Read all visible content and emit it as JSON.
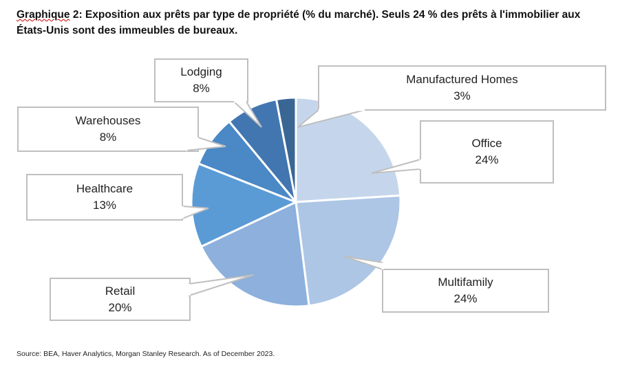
{
  "title_first": "Graphique",
  "title_rest": " 2: Exposition aux prêts par type de propriété (% du marché). Seuls 24 % des prêts à l'immobilier aux États-Unis sont des immeubles de bureaux.",
  "source": "Source: BEA, Haver Analytics, Morgan Stanley Research. As of December 2023.",
  "chart_data": {
    "type": "pie",
    "title": "Graphique 2: Exposition aux prêts par type de propriété (% du marché)",
    "start": "12 o'clock, clockwise",
    "slices": [
      {
        "label": "Office",
        "value": 24,
        "pct": "24%",
        "color": "#c5d6ec"
      },
      {
        "label": "Multifamily",
        "value": 24,
        "pct": "24%",
        "color": "#adc6e5"
      },
      {
        "label": "Retail",
        "value": 20,
        "pct": "20%",
        "color": "#8db0dc"
      },
      {
        "label": "Healthcare",
        "value": 13,
        "pct": "13%",
        "color": "#5b9bd5"
      },
      {
        "label": "Warehouses",
        "value": 8,
        "pct": "8%",
        "color": "#4a88c6"
      },
      {
        "label": "Lodging",
        "value": 8,
        "pct": "8%",
        "color": "#4276b0"
      },
      {
        "label": "Manufactured Homes",
        "value": 3,
        "pct": "3%",
        "color": "#3a6694"
      }
    ]
  }
}
